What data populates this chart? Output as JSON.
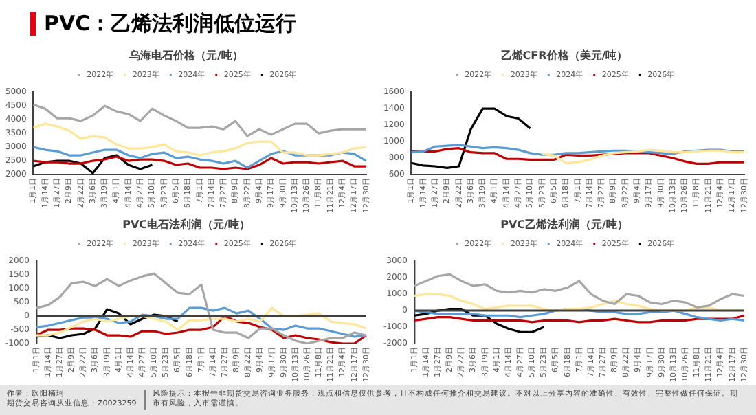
{
  "chart_data": [
    {
      "type": "line",
      "title": "乌海电石价格（元/吨）",
      "annotations": [
        "PVC：乙烯法利润低位运行"
      ],
      "categories": [
        "1月1日",
        "1月14日",
        "1月27日",
        "2月9日",
        "2月22日",
        "3月6日",
        "3月19日",
        "4月1日",
        "4月14日",
        "4月27日",
        "5月10日",
        "5月23日",
        "6月5日",
        "6月18日",
        "7月1日",
        "7月14日",
        "7月27日",
        "8月9日",
        "8月22日",
        "9月4日",
        "9月17日",
        "9月30日",
        "10月13日",
        "10月26日",
        "11月8日",
        "11月21日",
        "12月4日",
        "12月17日",
        "12月30日"
      ],
      "series": [
        {
          "name": "2022年",
          "color": "#a6a6a6",
          "values": [
            4550,
            4400,
            4050,
            4050,
            3950,
            4150,
            4500,
            4300,
            4200,
            3950,
            4400,
            4150,
            3950,
            3700,
            3700,
            3750,
            3650,
            3950,
            3400,
            3650,
            3450,
            3650,
            3850,
            3850,
            3500,
            3600,
            3650,
            3650,
            3650
          ]
        },
        {
          "name": "2023年",
          "color": "#ffe699",
          "values": [
            3700,
            3850,
            3750,
            3600,
            3300,
            3400,
            3350,
            3100,
            2950,
            2950,
            3000,
            3100,
            2850,
            2800,
            2700,
            2800,
            2850,
            2950,
            3150,
            3200,
            3200,
            2800,
            2800,
            2700,
            2700,
            2750,
            2800,
            2950,
            3000
          ]
        },
        {
          "name": "2024年",
          "color": "#5b9bd5",
          "values": [
            3000,
            2900,
            2850,
            2700,
            2700,
            2800,
            2900,
            2900,
            2700,
            2600,
            2750,
            2800,
            2600,
            2650,
            2550,
            2500,
            2400,
            2500,
            2250,
            2500,
            2750,
            2850,
            2700,
            2700,
            2700,
            2700,
            2800,
            2750,
            2500
          ]
        },
        {
          "name": "2025年",
          "color": "#c00000",
          "values": [
            2500,
            2450,
            2450,
            2400,
            2400,
            2500,
            2550,
            2650,
            2500,
            2550,
            2550,
            2500,
            2350,
            2400,
            2250,
            2250,
            2200,
            2250,
            2200,
            2350,
            2600,
            2400,
            2450,
            2450,
            2400,
            2450,
            2500,
            2300,
            2300
          ]
        },
        {
          "name": "2026年",
          "color": "#000000",
          "values": [
            2300,
            2450,
            2500,
            2500,
            2400,
            2050,
            2600,
            2700,
            2350,
            2200,
            2350,
            null,
            null,
            null,
            null,
            null,
            null,
            null,
            null,
            null,
            null,
            null,
            null,
            null,
            null,
            null,
            null,
            null,
            null
          ]
        }
      ],
      "ylim": [
        2000,
        5000
      ],
      "yticks": [
        2000,
        2500,
        3000,
        3500,
        4000,
        4500,
        5000
      ],
      "legend": "top",
      "marker": "none",
      "line_style": "solid"
    },
    {
      "type": "line",
      "title": "乙烯CFR价格（美元/吨）",
      "categories": [
        "1月1日",
        "1月14日",
        "1月27日",
        "2月9日",
        "2月22日",
        "3月6日",
        "3月19日",
        "4月1日",
        "4月14日",
        "4月27日",
        "5月10日",
        "5月23日",
        "6月5日",
        "6月18日",
        "7月1日",
        "7月14日",
        "7月27日",
        "8月9日",
        "8月22日",
        "9月4日",
        "9月17日",
        "9月30日",
        "10月13日",
        "10月26日",
        "11月8日",
        "11月21日",
        "12月4日",
        "12月17日",
        "12月30日"
      ],
      "series": [
        {
          "name": "2022年",
          "color": "#a6a6a6",
          "values": [
            null,
            null,
            null,
            null,
            null,
            null,
            null,
            null,
            null,
            null,
            null,
            null,
            null,
            null,
            null,
            null,
            null,
            null,
            null,
            null,
            null,
            null,
            null,
            null,
            null,
            null,
            null,
            null,
            null
          ]
        },
        {
          "name": "2023年",
          "color": "#ffe699",
          "values": [
            null,
            null,
            null,
            null,
            null,
            null,
            null,
            null,
            null,
            null,
            null,
            850,
            830,
            740,
            750,
            780,
            830,
            860,
            870,
            880,
            900,
            890,
            870,
            870,
            880,
            890,
            890,
            870,
            870
          ]
        },
        {
          "name": "2024年",
          "color": "#5b9bd5",
          "values": [
            870,
            880,
            940,
            950,
            960,
            940,
            920,
            930,
            920,
            900,
            860,
            840,
            840,
            860,
            860,
            870,
            880,
            890,
            890,
            880,
            870,
            860,
            850,
            880,
            890,
            900,
            900,
            880,
            880
          ]
        },
        {
          "name": "2025年",
          "color": "#c00000",
          "values": [
            880,
            880,
            880,
            910,
            920,
            870,
            860,
            860,
            790,
            790,
            780,
            780,
            780,
            840,
            830,
            830,
            840,
            850,
            860,
            860,
            860,
            830,
            800,
            760,
            730,
            730,
            750,
            750,
            750
          ]
        },
        {
          "name": "2026年",
          "color": "#000000",
          "values": [
            740,
            710,
            700,
            680,
            700,
            1150,
            1400,
            1400,
            1310,
            1280,
            1160,
            null,
            null,
            null,
            null,
            null,
            null,
            null,
            null,
            null,
            null,
            null,
            null,
            null,
            null,
            null,
            null,
            null,
            null
          ]
        }
      ],
      "ylim": [
        600,
        1600
      ],
      "yticks": [
        600,
        800,
        1000,
        1200,
        1400,
        1600
      ],
      "legend": "top",
      "marker": "none",
      "line_style": "solid"
    },
    {
      "type": "line",
      "title": "PVC电石法利润（元/吨）",
      "categories": [
        "1月1日",
        "1月14日",
        "1月27日",
        "2月9日",
        "2月22日",
        "3月6日",
        "3月19日",
        "4月1日",
        "4月14日",
        "4月27日",
        "5月10日",
        "5月23日",
        "6月5日",
        "6月18日",
        "7月1日",
        "7月14日",
        "7月27日",
        "8月9日",
        "8月22日",
        "9月4日",
        "9月17日",
        "9月30日",
        "10月13日",
        "10月26日",
        "11月8日",
        "11月21日",
        "12月4日",
        "12月17日",
        "12月30日"
      ],
      "series": [
        {
          "name": "2022年",
          "color": "#a6a6a6",
          "values": [
            300,
            400,
            700,
            1200,
            1250,
            1100,
            1350,
            1100,
            1300,
            1450,
            1550,
            1200,
            850,
            800,
            1150,
            -500,
            -600,
            -600,
            -800,
            -450,
            -450,
            -700,
            -900,
            -1000,
            -900,
            -800,
            -800,
            -600,
            -700
          ]
        },
        {
          "name": "2023年",
          "color": "#ffe699",
          "values": [
            -700,
            -700,
            -600,
            -400,
            -200,
            -100,
            -200,
            -100,
            0,
            0,
            -100,
            -200,
            -500,
            -150,
            -150,
            -100,
            -100,
            -200,
            -100,
            -200,
            300,
            0,
            0,
            50,
            100,
            -200,
            -250,
            -300,
            -450
          ]
        },
        {
          "name": "2024年",
          "color": "#5b9bd5",
          "values": [
            -400,
            -350,
            -250,
            -150,
            -50,
            -50,
            -100,
            -250,
            -200,
            50,
            0,
            -100,
            -100,
            300,
            300,
            200,
            300,
            100,
            200,
            -100,
            -450,
            -500,
            -350,
            -450,
            -450,
            -550,
            -650,
            -750,
            -700
          ]
        },
        {
          "name": "2025年",
          "color": "#c00000",
          "values": [
            -700,
            -500,
            -500,
            -450,
            -450,
            -500,
            -700,
            -700,
            -750,
            -550,
            -550,
            -650,
            -600,
            -500,
            -500,
            -400,
            0,
            -200,
            -250,
            -400,
            -500,
            -800,
            -700,
            -800,
            -850,
            -950,
            -1000,
            -1000,
            -700
          ]
        },
        {
          "name": "2026年",
          "color": "#000000",
          "values": [
            -750,
            -700,
            -800,
            -700,
            -650,
            -450,
            250,
            100,
            -300,
            -100,
            50,
            0,
            -200,
            null,
            null,
            null,
            null,
            null,
            null,
            null,
            null,
            null,
            null,
            null,
            null,
            null,
            null,
            null,
            null
          ]
        }
      ],
      "ylim": [
        -1000,
        2000
      ],
      "yticks": [
        -1000,
        -500,
        0,
        500,
        1000,
        1500,
        2000
      ],
      "ref_lines": [
        {
          "axis": "y",
          "value": 0,
          "color": "#404040"
        }
      ],
      "legend": "top",
      "marker": "none",
      "line_style": "solid"
    },
    {
      "type": "line",
      "title": "PVC乙烯法利润（元/吨）",
      "annotations": [
        "作者：欧阳楠珂",
        "期货交易咨询从业信息：Z0023259",
        "风险提示：本报告非期货交易咨询业务服务，观点和信息仅供参考，且不构成任何推介和交易建议。不对以上分享内容的准确性、有效性、完整性做任何保证。期市有风险，入市需谨慎。"
      ],
      "categories": [
        "1月1日",
        "1月14日",
        "1月27日",
        "2月9日",
        "2月22日",
        "3月6日",
        "3月19日",
        "4月1日",
        "4月14日",
        "4月27日",
        "5月10日",
        "5月23日",
        "6月5日",
        "6月18日",
        "7月1日",
        "7月14日",
        "7月27日",
        "8月9日",
        "8月22日",
        "9月4日",
        "9月17日",
        "9月30日",
        "10月13日",
        "10月26日",
        "11月8日",
        "11月21日",
        "12月4日",
        "12月17日",
        "12月30日"
      ],
      "series": [
        {
          "name": "2022年",
          "color": "#a6a6a6",
          "values": [
            1500,
            1800,
            2100,
            2200,
            1800,
            1500,
            1600,
            1200,
            1100,
            1200,
            1100,
            1300,
            1200,
            1400,
            1800,
            1000,
            600,
            400,
            1000,
            900,
            500,
            400,
            600,
            500,
            200,
            300,
            700,
            1000,
            900
          ]
        },
        {
          "name": "2023年",
          "color": "#ffe699",
          "values": [
            900,
            1000,
            1000,
            900,
            600,
            400,
            100,
            200,
            300,
            300,
            300,
            100,
            0,
            100,
            100,
            200,
            400,
            600,
            400,
            300,
            100,
            0,
            0,
            0,
            200,
            200,
            0,
            0,
            0
          ]
        },
        {
          "name": "2024年",
          "color": "#5b9bd5",
          "values": [
            0,
            -100,
            -200,
            -200,
            -200,
            -200,
            -300,
            -300,
            -300,
            -400,
            -300,
            -200,
            0,
            100,
            100,
            0,
            -100,
            -100,
            -200,
            -200,
            -100,
            -100,
            0,
            -200,
            -400,
            -500,
            -600,
            -500,
            -600
          ]
        },
        {
          "name": "2025年",
          "color": "#c00000",
          "values": [
            -600,
            -500,
            -400,
            -400,
            -500,
            -600,
            -600,
            -600,
            -600,
            -600,
            -700,
            -600,
            -600,
            -600,
            -700,
            -600,
            -600,
            -500,
            -600,
            -700,
            -700,
            -600,
            -600,
            -600,
            -500,
            -500,
            -500,
            -500,
            -300
          ]
        },
        {
          "name": "2026年",
          "color": "#000000",
          "values": [
            -300,
            -200,
            0,
            100,
            100,
            -300,
            -300,
            -800,
            -1100,
            -1300,
            -1300,
            -1000,
            null,
            null,
            null,
            null,
            null,
            null,
            null,
            null,
            null,
            null,
            null,
            null,
            null,
            null,
            null,
            null,
            null
          ]
        }
      ],
      "ylim": [
        -2000,
        3000
      ],
      "yticks": [
        -2000,
        -1000,
        0,
        1000,
        2000,
        3000
      ],
      "ref_lines": [
        {
          "axis": "y",
          "value": 0,
          "color": "#404040"
        }
      ],
      "legend": "top",
      "marker": "none",
      "line_style": "solid"
    }
  ]
}
